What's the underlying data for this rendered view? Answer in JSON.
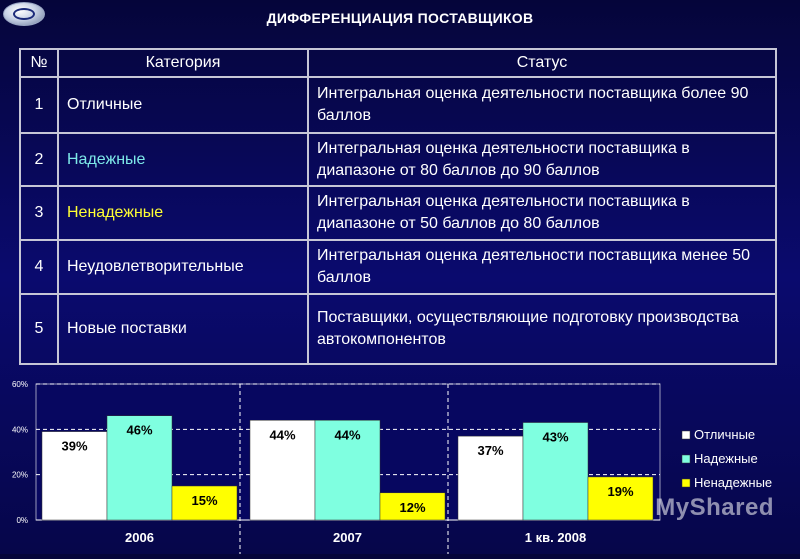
{
  "page_title": "ДИФФЕРЕНЦИАЦИЯ ПОСТАВЩИКОВ",
  "table": {
    "headers": [
      "№",
      "Категория",
      "Статус"
    ],
    "rows": [
      {
        "num": "1",
        "category": "Отличные",
        "status": "Интегральная оценка деятельности поставщика более 90 баллов"
      },
      {
        "num": "2",
        "category": "Надежные",
        "status": "Интегральная оценка деятельности поставщика в диапазоне от 80 баллов до 90 баллов"
      },
      {
        "num": "3",
        "category": "Ненадежные",
        "status": "Интегральная оценка деятельности поставщика в диапазоне от 50 баллов до 80 баллов"
      },
      {
        "num": "4",
        "category": "Неудовлетворительные",
        "status": "Интегральная оценка деятельности поставщика менее 50 баллов"
      },
      {
        "num": "5",
        "category": "Новые поставки",
        "status": "Поставщики, осуществляющие подготовку производства автокомпонентов"
      }
    ]
  },
  "chart_data": {
    "type": "bar",
    "categories": [
      "2006",
      "2007",
      "1 кв. 2008"
    ],
    "series": [
      {
        "name": "Отличные",
        "values": [
          39,
          44,
          37
        ],
        "labels": [
          "39%",
          "44%",
          "37%"
        ],
        "color": "#ffffff"
      },
      {
        "name": "Надежные",
        "values": [
          46,
          44,
          43
        ],
        "labels": [
          "46%",
          "44%",
          "43%"
        ],
        "color": "#7fffe0"
      },
      {
        "name": "Ненадежные",
        "values": [
          15,
          12,
          19
        ],
        "labels": [
          "15%",
          "12%",
          "19%"
        ],
        "color": "#ffff00"
      }
    ],
    "yticks": [
      "0%",
      "20%",
      "40%",
      "60%"
    ],
    "ylim": [
      0,
      60
    ],
    "grid": true,
    "legend": "right"
  },
  "watermark": "MyShared"
}
